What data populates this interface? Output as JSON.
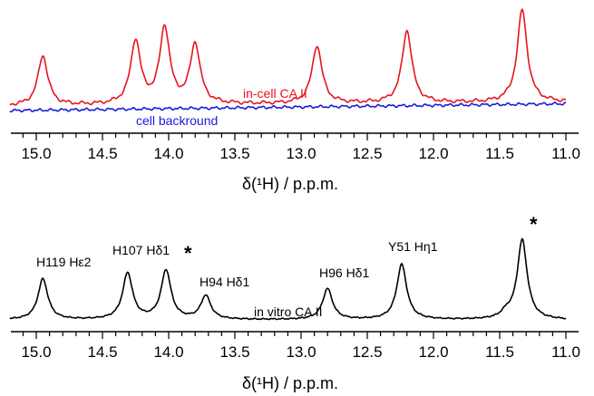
{
  "chart_data": [
    {
      "type": "line",
      "xlabel": "δ(¹H) / p.p.m.",
      "xlim": [
        15.4,
        11.0
      ],
      "x_reversed": true,
      "ticks": [
        15.0,
        14.5,
        14.0,
        13.5,
        13.0,
        12.5,
        12.0,
        11.5,
        11.0
      ],
      "tick_labels": [
        "15.0",
        "14.5",
        "14.0",
        "13.5",
        "13.0",
        "12.5",
        "12.0",
        "11.5",
        "11.0"
      ],
      "series": [
        {
          "name": "in-cell CA II",
          "color": "#e8141c",
          "baseline": 0.04,
          "peaks": [
            {
              "x": 14.95,
              "height": 0.55
            },
            {
              "x": 14.25,
              "height": 0.7
            },
            {
              "x": 14.03,
              "height": 0.84
            },
            {
              "x": 13.8,
              "height": 0.66
            },
            {
              "x": 12.88,
              "height": 0.64
            },
            {
              "x": 12.2,
              "height": 0.8
            },
            {
              "x": 11.33,
              "height": 1.02
            }
          ]
        },
        {
          "name": "cell backround",
          "color": "#1a1adc",
          "baseline": 0.0,
          "peaks": []
        }
      ]
    },
    {
      "type": "line",
      "xlabel": "δ(¹H) / p.p.m.",
      "xlim": [
        15.4,
        11.0
      ],
      "x_reversed": true,
      "ticks": [
        15.0,
        14.5,
        14.0,
        13.5,
        13.0,
        12.5,
        12.0,
        11.5,
        11.0
      ],
      "tick_labels": [
        "15.0",
        "14.5",
        "14.0",
        "13.5",
        "13.0",
        "12.5",
        "12.0",
        "11.5",
        "11.0"
      ],
      "series": [
        {
          "name": "in vitro CA II",
          "color": "#000000",
          "baseline": 0.0,
          "peaks": [
            {
              "x": 14.95,
              "height": 0.45,
              "label": "H119 Hε2"
            },
            {
              "x": 14.31,
              "height": 0.51,
              "label": "H107 Hδ1"
            },
            {
              "x": 14.02,
              "height": 0.54,
              "label": "*"
            },
            {
              "x": 13.72,
              "height": 0.26,
              "label": "H94 Hδ1"
            },
            {
              "x": 12.8,
              "height": 0.34,
              "label": "H96 Hδ1"
            },
            {
              "x": 12.24,
              "height": 0.61,
              "label": "Y51 Hη1"
            },
            {
              "x": 11.45,
              "height": 0.06
            },
            {
              "x": 11.33,
              "height": 0.88,
              "label": "*"
            }
          ]
        }
      ]
    }
  ],
  "labels": {
    "in_cell": "in-cell CA II",
    "background": "cell backround",
    "in_vitro": "in vitro CA II",
    "top_xlabel": "δ(¹H) / p.p.m.",
    "bottom_xlabel": "δ(¹H) / p.p.m.",
    "peak_h119": "H119 Hε2",
    "peak_h107": "H107 Hδ1",
    "peak_h94": "H94 Hδ1",
    "peak_h96": "H96 Hδ1",
    "peak_y51": "Y51 Hη1",
    "star": "*"
  }
}
